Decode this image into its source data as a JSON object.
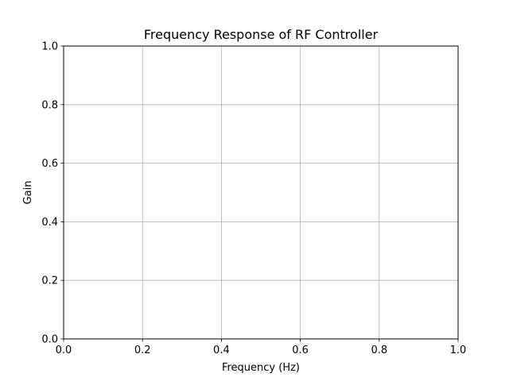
{
  "chart_data": {
    "type": "line",
    "title": "Frequency Response of RF Controller",
    "xlabel": "Frequency (Hz)",
    "ylabel": "Gain",
    "xlim": [
      0.0,
      1.0
    ],
    "ylim": [
      0.0,
      1.0
    ],
    "xticks": [
      "0.0",
      "0.2",
      "0.4",
      "0.6",
      "0.8",
      "1.0"
    ],
    "yticks": [
      "0.0",
      "0.2",
      "0.4",
      "0.6",
      "0.8",
      "1.0"
    ],
    "grid": true,
    "series": []
  }
}
